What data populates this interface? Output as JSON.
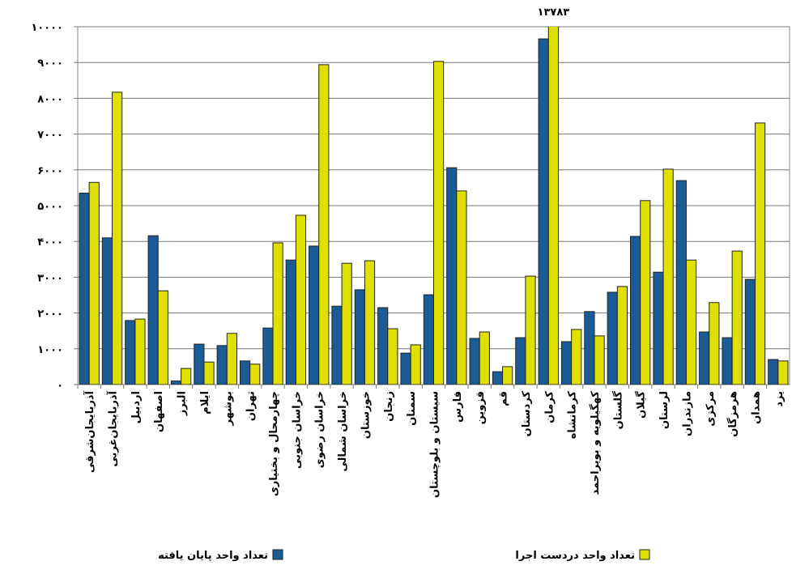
{
  "chart_data": {
    "type": "bar",
    "categories": [
      "آذربایجان‌شرقی",
      "آذربایجان‌غربی",
      "اردبیل",
      "اصفهان",
      "البرز",
      "ایلام",
      "بوشهر",
      "تهران",
      "چهارمحال و بختیاری",
      "خراسان جنوبی",
      "خراسان رضوی",
      "خراسان شمالی",
      "خوزستان",
      "زنجان",
      "سمنان",
      "سیستان و بلوچستان",
      "فارس",
      "قزوین",
      "قم",
      "کردستان",
      "کرمان",
      "کرمانشاه",
      "کهگیلویه و بویراحمد",
      "گلستان",
      "گیلان",
      "لرستان",
      "مازندران",
      "مرکزی",
      "هرمزگان",
      "همدان",
      "یزد"
    ],
    "series": [
      {
        "name": "تعداد واحد پایان یافته",
        "color": "#1b5b96",
        "values": [
          5350,
          4100,
          1790,
          4160,
          100,
          1130,
          1090,
          660,
          1580,
          3480,
          3870,
          2190,
          2650,
          2150,
          880,
          2510,
          6060,
          1290,
          360,
          1310,
          9660,
          1200,
          2040,
          2580,
          4140,
          3140,
          5700,
          1470,
          1310,
          2940,
          700
        ]
      },
      {
        "name": "تعداد واحد دردست اجرا",
        "color": "#e0e000",
        "values": [
          5650,
          8170,
          1830,
          2620,
          450,
          630,
          1430,
          570,
          3960,
          4730,
          8940,
          3390,
          3460,
          1560,
          1110,
          9030,
          5410,
          1470,
          500,
          3030,
          13783,
          1540,
          1360,
          2740,
          5140,
          6020,
          3480,
          2290,
          3730,
          7310,
          660
        ],
        "value_labels": [
          null,
          null,
          null,
          null,
          null,
          null,
          null,
          null,
          null,
          null,
          null,
          null,
          null,
          null,
          null,
          null,
          null,
          null,
          null,
          null,
          "۱۳۷۸۳",
          null,
          null,
          null,
          null,
          null,
          null,
          null,
          null,
          null,
          null
        ]
      }
    ],
    "ylim": [
      0,
      10000
    ],
    "yticks": [
      {
        "value": 0,
        "label": "۰"
      },
      {
        "value": 1000,
        "label": "۱۰۰۰"
      },
      {
        "value": 2000,
        "label": "۲۰۰۰"
      },
      {
        "value": 3000,
        "label": "۳۰۰۰"
      },
      {
        "value": 4000,
        "label": "۴۰۰۰"
      },
      {
        "value": 5000,
        "label": "۵۰۰۰"
      },
      {
        "value": 6000,
        "label": "۶۰۰۰"
      },
      {
        "value": 7000,
        "label": "۷۰۰۰"
      },
      {
        "value": 8000,
        "label": "۸۰۰۰"
      },
      {
        "value": 9000,
        "label": "۹۰۰۰"
      },
      {
        "value": 10000,
        "label": "۱۰۰۰۰"
      }
    ],
    "grid": true
  }
}
